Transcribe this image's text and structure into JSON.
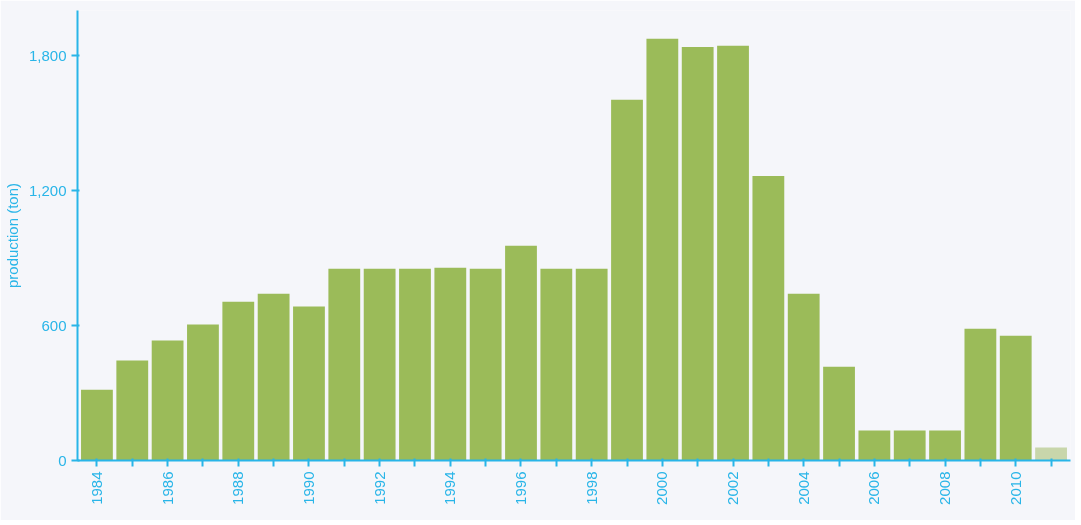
{
  "chart_data": {
    "type": "bar",
    "ylabel": "production (ton)",
    "categories": [
      "1984",
      null,
      "1986",
      null,
      "1988",
      null,
      "1990",
      null,
      "1992",
      null,
      "1994",
      null,
      "1996",
      null,
      "1998",
      null,
      "2000",
      null,
      "2002",
      null,
      "2004",
      null,
      "2006",
      null,
      "2008",
      null,
      "2010",
      null
    ],
    "values": [
      315,
      444,
      533,
      604,
      706,
      741,
      684,
      852,
      852,
      852,
      857,
      852,
      955,
      852,
      852,
      1603,
      1874,
      1838,
      1843,
      1265,
      741,
      417,
      133,
      133,
      133,
      586,
      555,
      58
    ],
    "colors": [
      "#9bbb59",
      "#9bbb59",
      "#9bbb59",
      "#9bbb59",
      "#9bbb59",
      "#9bbb59",
      "#9bbb59",
      "#9bbb59",
      "#9bbb59",
      "#9bbb59",
      "#9bbb59",
      "#9bbb59",
      "#9bbb59",
      "#9bbb59",
      "#9bbb59",
      "#9bbb59",
      "#9bbb59",
      "#9bbb59",
      "#9bbb59",
      "#9bbb59",
      "#9bbb59",
      "#9bbb59",
      "#9bbb59",
      "#9bbb59",
      "#9bbb59",
      "#9bbb59",
      "#9bbb59",
      "#c8d6ab"
    ],
    "ylim": [
      0,
      2000
    ],
    "yticks": [
      0,
      600,
      {
        "value": 1200,
        "label": "1,200"
      },
      {
        "value": 1800,
        "label": "1,800"
      }
    ],
    "grid": false
  }
}
